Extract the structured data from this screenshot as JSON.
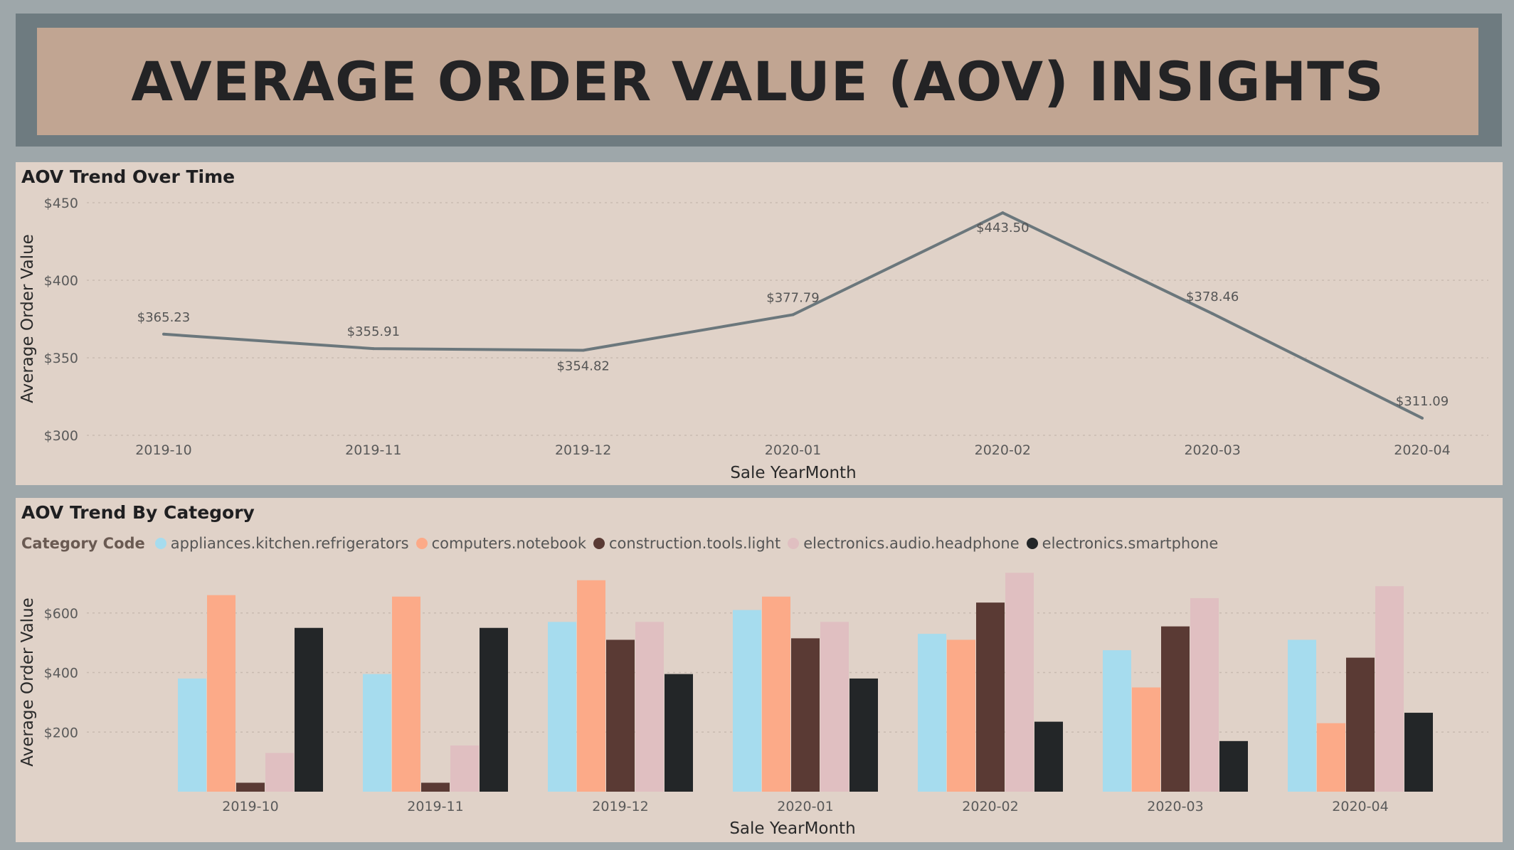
{
  "header": {
    "title": "AVERAGE ORDER VALUE (AOV) INSIGHTS"
  },
  "line_panel": {
    "title": "AOV Trend Over Time"
  },
  "bar_panel": {
    "title": "AOV Trend By Category",
    "legend_title": "Category Code"
  },
  "chart_data": [
    {
      "type": "line",
      "title": "AOV Trend Over Time",
      "xlabel": "Sale YearMonth",
      "ylabel": "Average Order Value",
      "x": [
        "2019-10",
        "2019-11",
        "2019-12",
        "2020-01",
        "2020-02",
        "2020-03",
        "2020-04"
      ],
      "values": [
        365.23,
        355.91,
        354.82,
        377.79,
        443.5,
        378.46,
        311.09
      ],
      "data_labels": [
        "$365.23",
        "$355.91",
        "$354.82",
        "$377.79",
        "$443.50",
        "$378.46",
        "$311.09"
      ],
      "ylim": [
        300,
        450
      ],
      "yticks": [
        300,
        350,
        400,
        450
      ],
      "ytick_labels": [
        "$300",
        "$350",
        "$400",
        "$450"
      ],
      "grid": true,
      "line_color": "#6b777c"
    },
    {
      "type": "bar",
      "title": "AOV Trend By Category",
      "xlabel": "Sale YearMonth",
      "ylabel": "Average Order Value",
      "legend_title": "Category Code",
      "legend_position": "top-left",
      "categories": [
        "2019-10",
        "2019-11",
        "2019-12",
        "2020-01",
        "2020-02",
        "2020-03",
        "2020-04"
      ],
      "series": [
        {
          "name": "appliances.kitchen.refrigerators",
          "color": "#a6dcee",
          "values": [
            380,
            395,
            570,
            610,
            530,
            475,
            510
          ]
        },
        {
          "name": "computers.notebook",
          "color": "#fcaa88",
          "values": [
            660,
            655,
            710,
            655,
            510,
            350,
            230
          ]
        },
        {
          "name": "construction.tools.light",
          "color": "#5a3a34",
          "values": [
            30,
            30,
            510,
            515,
            635,
            555,
            450
          ]
        },
        {
          "name": "electronics.audio.headphone",
          "color": "#e0bfc1",
          "values": [
            130,
            155,
            570,
            570,
            735,
            650,
            690
          ]
        },
        {
          "name": "electronics.smartphone",
          "color": "#232628",
          "values": [
            550,
            550,
            395,
            380,
            235,
            170,
            265
          ]
        }
      ],
      "ylim": [
        0,
        750
      ],
      "yticks": [
        200,
        400,
        600
      ],
      "ytick_labels": [
        "$200",
        "$400",
        "$600"
      ],
      "grid": true
    }
  ]
}
